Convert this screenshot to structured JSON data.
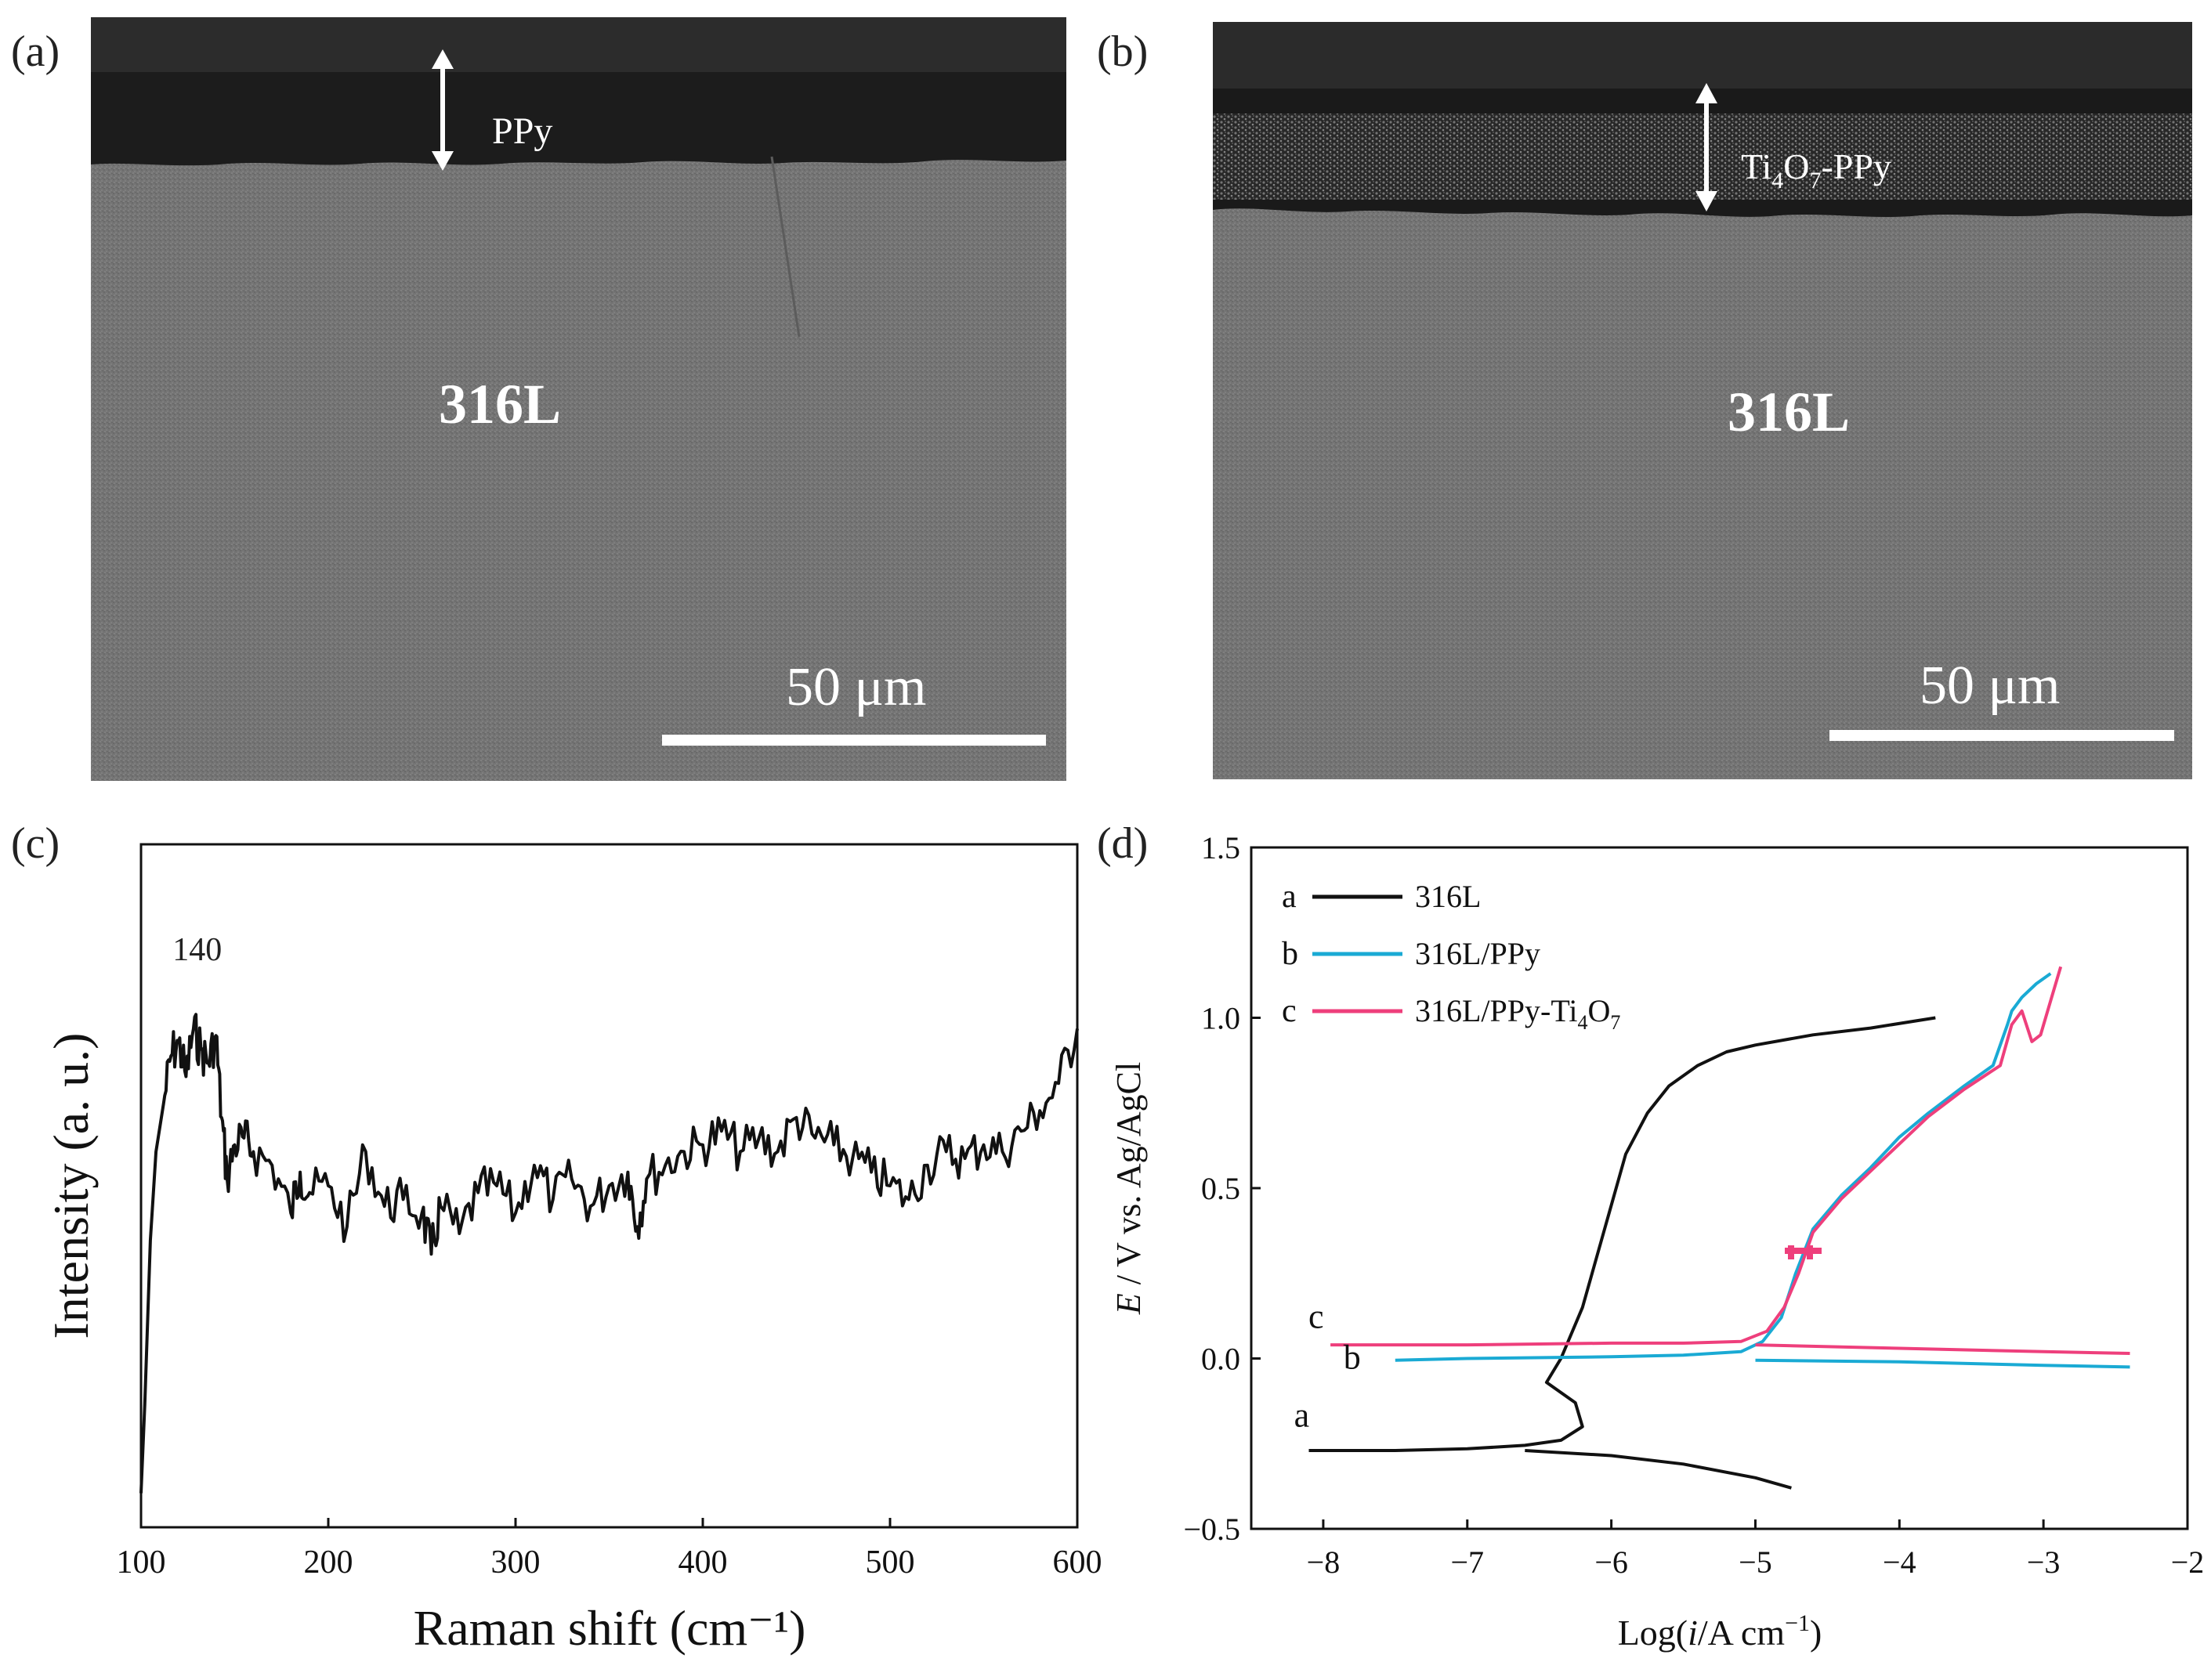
{
  "panels": {
    "a": {
      "label": "(a)",
      "layer_label": "PPy",
      "substrate_label": "316L",
      "scale_bar_label": "50 μm"
    },
    "b": {
      "label": "(b)",
      "layer_label_parts": [
        "Ti",
        "4",
        "O",
        "7",
        "-PPy"
      ],
      "substrate_label": "316L",
      "scale_bar_label": "50 μm"
    },
    "c": {
      "label": "(c)"
    },
    "d": {
      "label": "(d)"
    }
  },
  "colors": {
    "black_curve": "#111111",
    "cyan_curve": "#1aaad4",
    "pink_curve": "#ee3f7c",
    "sem_substrate": "#747474",
    "sem_layer": "#1a1a1a"
  },
  "chart_data": [
    {
      "id": "c",
      "type": "line",
      "title": "",
      "xlabel": "Raman shift (cm⁻¹)",
      "ylabel": "Intensity (a. u.)",
      "xlim": [
        100,
        600
      ],
      "ylim": [
        0,
        1
      ],
      "y_ticks_visible": false,
      "xticks": [
        100,
        200,
        300,
        400,
        500,
        600
      ],
      "annotations": [
        {
          "text": "140",
          "x": 130,
          "y": 0.83
        }
      ],
      "series": [
        {
          "name": "Raman",
          "color": "#111111",
          "x": [
            100,
            102,
            105,
            108,
            112,
            116,
            120,
            124,
            128,
            132,
            136,
            140,
            143,
            146,
            150,
            155,
            160,
            170,
            180,
            185,
            190,
            200,
            210,
            220,
            230,
            240,
            250,
            255,
            260,
            270,
            280,
            290,
            300,
            310,
            320,
            330,
            340,
            350,
            360,
            365,
            370,
            380,
            390,
            400,
            410,
            420,
            430,
            440,
            450,
            460,
            470,
            480,
            490,
            500,
            510,
            520,
            530,
            540,
            550,
            560,
            570,
            580,
            590,
            600
          ],
          "y": [
            0.05,
            0.18,
            0.42,
            0.55,
            0.62,
            0.69,
            0.71,
            0.66,
            0.73,
            0.7,
            0.68,
            0.72,
            0.6,
            0.51,
            0.56,
            0.57,
            0.55,
            0.53,
            0.46,
            0.52,
            0.49,
            0.5,
            0.44,
            0.55,
            0.47,
            0.48,
            0.46,
            0.4,
            0.47,
            0.43,
            0.49,
            0.5,
            0.46,
            0.53,
            0.48,
            0.51,
            0.47,
            0.5,
            0.52,
            0.44,
            0.51,
            0.53,
            0.55,
            0.56,
            0.58,
            0.55,
            0.57,
            0.55,
            0.6,
            0.57,
            0.56,
            0.54,
            0.52,
            0.5,
            0.48,
            0.53,
            0.55,
            0.54,
            0.56,
            0.55,
            0.58,
            0.61,
            0.65,
            0.73
          ]
        }
      ]
    },
    {
      "id": "d",
      "type": "line",
      "title": "",
      "xlabel_parts": [
        "Log(",
        "i",
        "/A cm",
        "−1",
        ")"
      ],
      "ylabel_parts": [
        "E",
        " / V vs. Ag/AgCl"
      ],
      "xlim": [
        -8.5,
        -2
      ],
      "ylim": [
        -0.5,
        1.5
      ],
      "xticks": [
        -8,
        -7,
        -6,
        -5,
        -4,
        -3,
        -2
      ],
      "xtick_labels": [
        "−8",
        "−7",
        "−6",
        "−5",
        "−4",
        "−3",
        "−2"
      ],
      "yticks": [
        -0.5,
        0.0,
        0.5,
        1.0,
        1.5
      ],
      "ytick_labels": [
        "−0.5",
        "0.0",
        "0.5",
        "1.0",
        "1.5"
      ],
      "legend_position": "top-left",
      "legend": [
        {
          "key": "a",
          "label": "316L"
        },
        {
          "key": "b",
          "label": "316L/PPy"
        },
        {
          "key": "c",
          "label_parts": [
            "316L/PPy-Ti",
            "4",
            "O",
            "7"
          ]
        }
      ],
      "curve_labels": [
        {
          "text": "a",
          "x": -8.15,
          "y": -0.2
        },
        {
          "text": "b",
          "x": -7.8,
          "y": -0.03
        },
        {
          "text": "c",
          "x": -8.05,
          "y": 0.09
        }
      ],
      "series": [
        {
          "name": "a",
          "color": "#111111",
          "x": [
            -8.1,
            -7.5,
            -7.0,
            -6.6,
            -6.35,
            -6.2,
            -6.25,
            -6.45,
            -6.35,
            -6.2,
            -6.1,
            -6.0,
            -5.9,
            -5.75,
            -5.6,
            -5.4,
            -5.2,
            -5.0,
            -4.6,
            -4.2,
            -3.75
          ],
          "y": [
            -0.27,
            -0.27,
            -0.265,
            -0.255,
            -0.24,
            -0.2,
            -0.13,
            -0.07,
            0.0,
            0.15,
            0.3,
            0.45,
            0.6,
            0.72,
            0.8,
            0.86,
            0.9,
            0.92,
            0.95,
            0.97,
            1.0
          ]
        },
        {
          "name": "a-cathodic",
          "color": "#111111",
          "x": [
            -6.6,
            -6.0,
            -5.5,
            -5.0,
            -4.75
          ],
          "y": [
            -0.27,
            -0.285,
            -0.31,
            -0.35,
            -0.38
          ]
        },
        {
          "name": "b",
          "color": "#1aaad4",
          "x": [
            -7.5,
            -7.0,
            -6.0,
            -5.5,
            -5.1,
            -4.95,
            -4.82,
            -4.72,
            -4.6,
            -4.4,
            -4.2,
            -4.0,
            -3.8,
            -3.55,
            -3.35,
            -3.25,
            -3.22,
            -3.15,
            -3.05,
            -2.95
          ],
          "y": [
            -0.005,
            0.0,
            0.005,
            0.01,
            0.02,
            0.05,
            0.12,
            0.25,
            0.38,
            0.48,
            0.56,
            0.65,
            0.72,
            0.8,
            0.86,
            0.98,
            1.02,
            1.06,
            1.1,
            1.13
          ]
        },
        {
          "name": "b-cathodic",
          "color": "#1aaad4",
          "x": [
            -5.0,
            -4.0,
            -3.0,
            -2.4
          ],
          "y": [
            -0.005,
            -0.01,
            -0.02,
            -0.025
          ]
        },
        {
          "name": "c",
          "color": "#ee3f7c",
          "x": [
            -7.95,
            -7.0,
            -6.0,
            -5.5,
            -5.1,
            -4.92,
            -4.8,
            -4.7,
            -4.6,
            -4.4,
            -4.2,
            -4.0,
            -3.8,
            -3.55,
            -3.3,
            -3.22,
            -3.15,
            -3.08,
            -3.02,
            -2.95,
            -2.88
          ],
          "y": [
            0.04,
            0.04,
            0.045,
            0.045,
            0.05,
            0.08,
            0.15,
            0.25,
            0.37,
            0.47,
            0.55,
            0.63,
            0.71,
            0.79,
            0.86,
            0.98,
            1.02,
            0.93,
            0.95,
            1.05,
            1.15
          ]
        },
        {
          "name": "c-cathodic",
          "color": "#ee3f7c",
          "x": [
            -5.0,
            -4.0,
            -3.0,
            -2.4
          ],
          "y": [
            0.04,
            0.03,
            0.02,
            0.015
          ]
        }
      ]
    }
  ]
}
